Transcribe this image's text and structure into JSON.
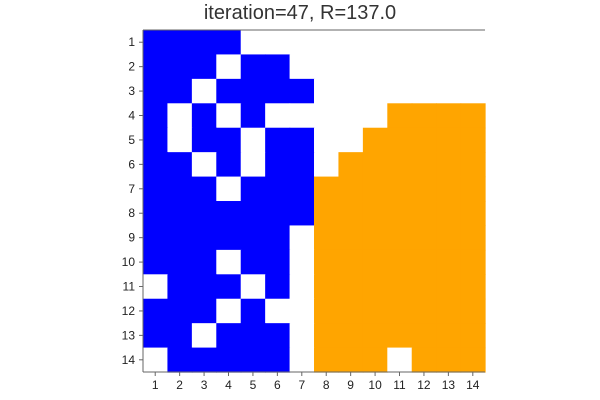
{
  "title": "iteration=47, R=137.0",
  "colors": {
    "blue": "#0000ff",
    "orange": "#ffa500",
    "empty": "#ffffff",
    "axis": "#666666"
  },
  "legend_codes": {
    "0": "empty",
    "1": "blue",
    "2": "orange"
  },
  "grid": {
    "row_labels": [
      "1",
      "2",
      "3",
      "4",
      "5",
      "6",
      "7",
      "8",
      "9",
      "10",
      "11",
      "12",
      "13",
      "14"
    ],
    "col_labels": [
      "1",
      "2",
      "3",
      "4",
      "5",
      "6",
      "7",
      "8",
      "9",
      "10",
      "11",
      "12",
      "13",
      "14"
    ],
    "cells": [
      [
        1,
        1,
        1,
        1,
        0,
        0,
        0,
        0,
        0,
        0,
        0,
        0,
        0,
        0
      ],
      [
        1,
        1,
        1,
        0,
        1,
        1,
        0,
        0,
        0,
        0,
        0,
        0,
        0,
        0
      ],
      [
        1,
        1,
        0,
        1,
        1,
        1,
        1,
        0,
        0,
        0,
        0,
        0,
        0,
        0
      ],
      [
        1,
        0,
        1,
        0,
        1,
        0,
        0,
        0,
        0,
        0,
        2,
        2,
        2,
        2
      ],
      [
        1,
        0,
        1,
        1,
        0,
        1,
        1,
        0,
        0,
        2,
        2,
        2,
        2,
        2
      ],
      [
        1,
        1,
        0,
        1,
        0,
        1,
        1,
        0,
        2,
        2,
        2,
        2,
        2,
        2
      ],
      [
        1,
        1,
        1,
        0,
        1,
        1,
        1,
        2,
        2,
        2,
        2,
        2,
        2,
        2
      ],
      [
        1,
        1,
        1,
        1,
        1,
        1,
        1,
        2,
        2,
        2,
        2,
        2,
        2,
        2
      ],
      [
        1,
        1,
        1,
        1,
        1,
        1,
        0,
        2,
        2,
        2,
        2,
        2,
        2,
        2
      ],
      [
        1,
        1,
        1,
        0,
        1,
        1,
        0,
        2,
        2,
        2,
        2,
        2,
        2,
        2
      ],
      [
        0,
        1,
        1,
        1,
        0,
        1,
        0,
        2,
        2,
        2,
        2,
        2,
        2,
        2
      ],
      [
        1,
        1,
        1,
        0,
        1,
        0,
        0,
        2,
        2,
        2,
        2,
        2,
        2,
        2
      ],
      [
        1,
        1,
        0,
        1,
        1,
        1,
        0,
        2,
        2,
        2,
        2,
        2,
        2,
        2
      ],
      [
        0,
        1,
        1,
        1,
        1,
        1,
        0,
        2,
        2,
        2,
        0,
        2,
        2,
        2
      ]
    ]
  }
}
